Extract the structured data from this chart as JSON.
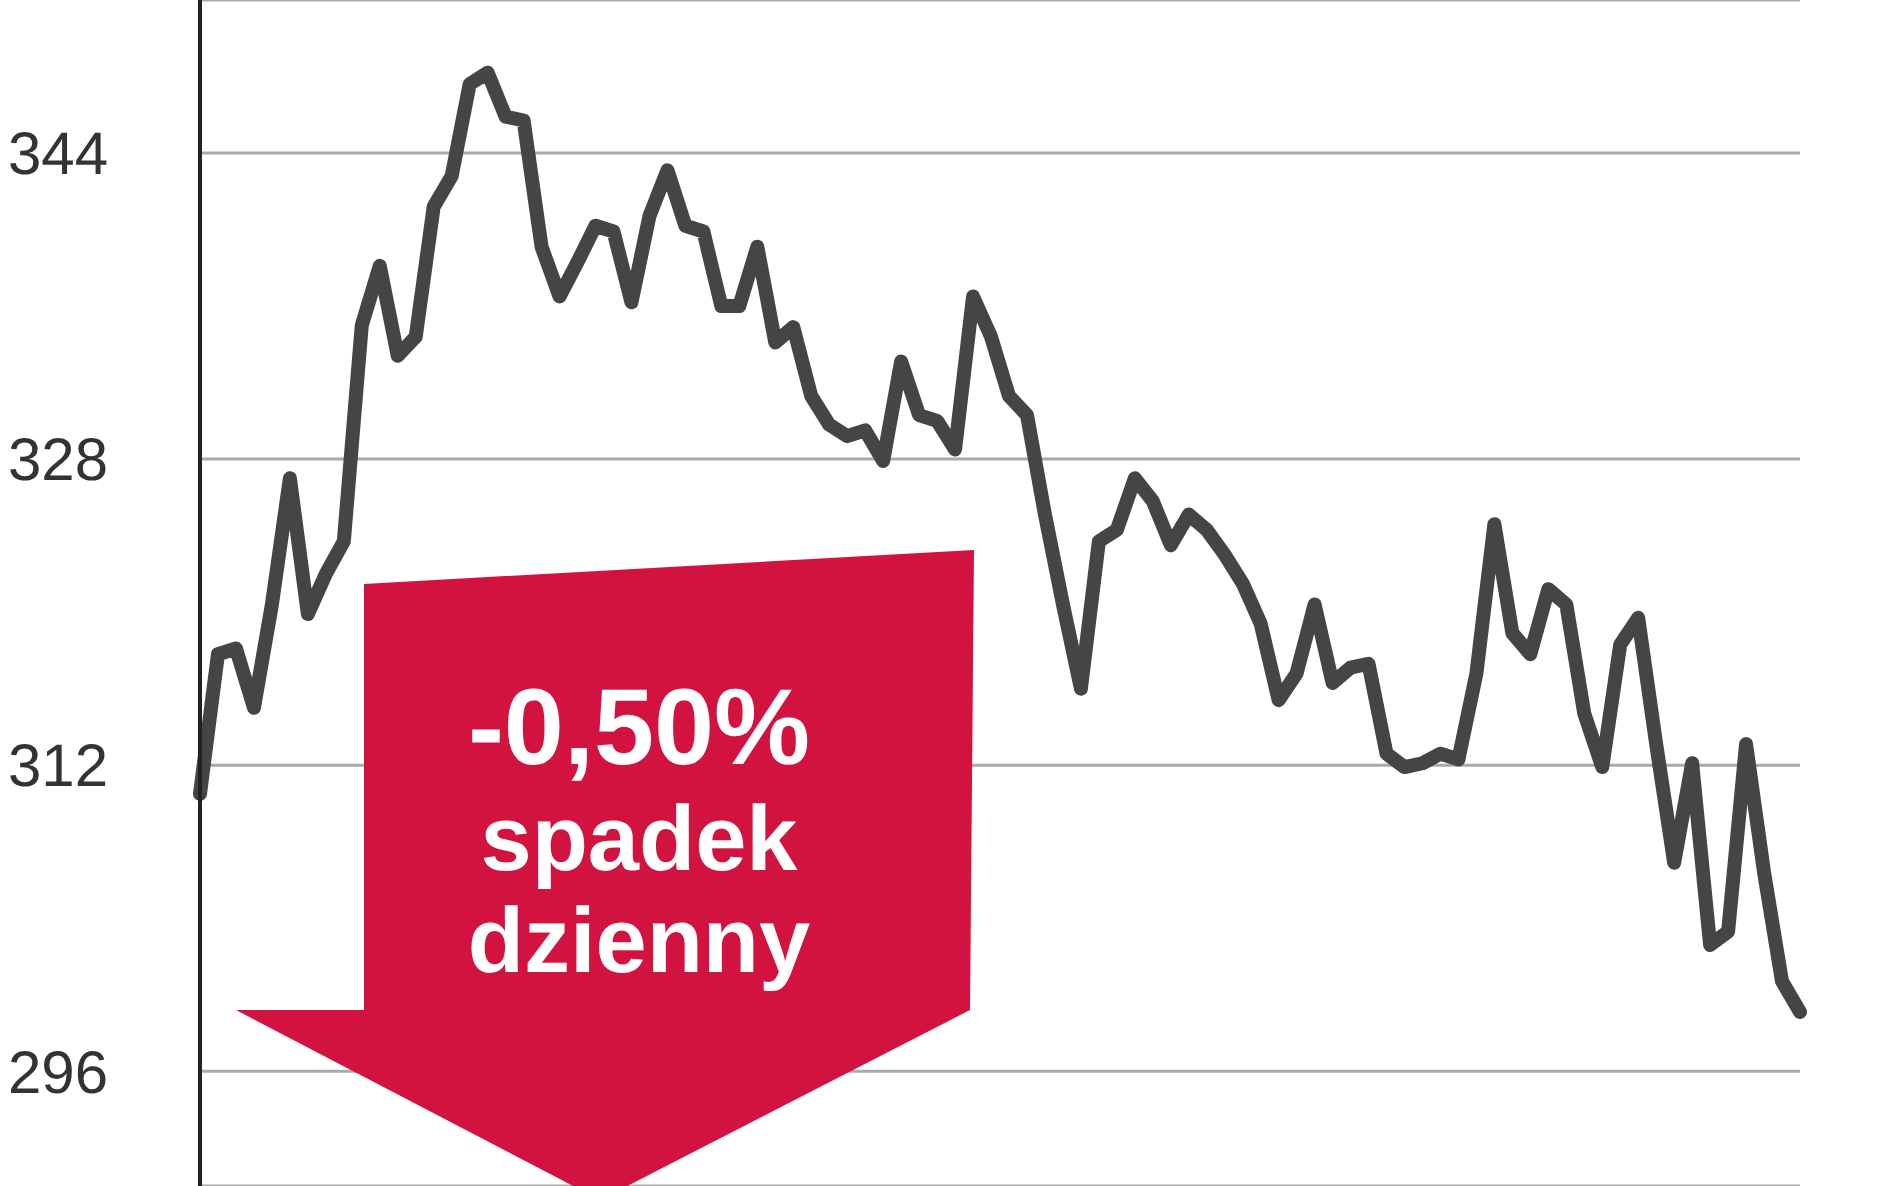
{
  "chart_data": {
    "type": "line",
    "categories": [
      null,
      null,
      null,
      null,
      null,
      null,
      null,
      null,
      null,
      null,
      null,
      null,
      null,
      null,
      null,
      null,
      null,
      null,
      null,
      null,
      null,
      null,
      null,
      null,
      null,
      null,
      null,
      null,
      null,
      null,
      null,
      null,
      null,
      null,
      null,
      null,
      null,
      null,
      null,
      null,
      null,
      null,
      null,
      null,
      null,
      null,
      null,
      null,
      null,
      null,
      null,
      null,
      null,
      null,
      null,
      null,
      null,
      null,
      null,
      null,
      null,
      null,
      null,
      null,
      null,
      null,
      null,
      null,
      null,
      null,
      null,
      null,
      null,
      null,
      null,
      null,
      null,
      null,
      null,
      null,
      null,
      null,
      null,
      null,
      null,
      null,
      null,
      null,
      null,
      null
    ],
    "series": [
      {
        "color": "#454545",
        "values": [
          310.5,
          317.8,
          318.1,
          315.0,
          320.4,
          327.0,
          319.9,
          322.0,
          323.7,
          335.0,
          338.1,
          333.4,
          334.4,
          341.2,
          342.8,
          347.6,
          348.2,
          345.9,
          345.7,
          339.1,
          336.5,
          338.3,
          340.2,
          339.9,
          336.2,
          340.7,
          343.1,
          340.2,
          339.9,
          336.0,
          336.0,
          339.1,
          334.1,
          334.9,
          331.3,
          329.8,
          329.2,
          329.5,
          327.9,
          333.1,
          330.3,
          330.0,
          328.5,
          336.5,
          334.4,
          331.3,
          330.3,
          325.1,
          320.4,
          316.0,
          323.7,
          324.3,
          327.0,
          325.8,
          323.5,
          325.1,
          324.3,
          323.0,
          321.5,
          319.4,
          315.4,
          316.8,
          320.4,
          316.3,
          317.1,
          317.3,
          312.6,
          311.9,
          312.1,
          312.6,
          312.3,
          316.8,
          324.6,
          318.9,
          317.8,
          321.2,
          320.4,
          314.7,
          311.9,
          318.3,
          319.7,
          313.1,
          306.9,
          312.1,
          302.6,
          303.3,
          313.1,
          306.4,
          300.7,
          299.1
        ]
      }
    ],
    "ylim": [
      290,
      352
    ],
    "yticks": [
      296,
      312,
      328,
      344
    ],
    "grid": "y",
    "tick_labels": "y",
    "marker": "none",
    "line_style": "solid",
    "annotations": [
      "-0,50%",
      "spadek dzienny"
    ]
  }
}
